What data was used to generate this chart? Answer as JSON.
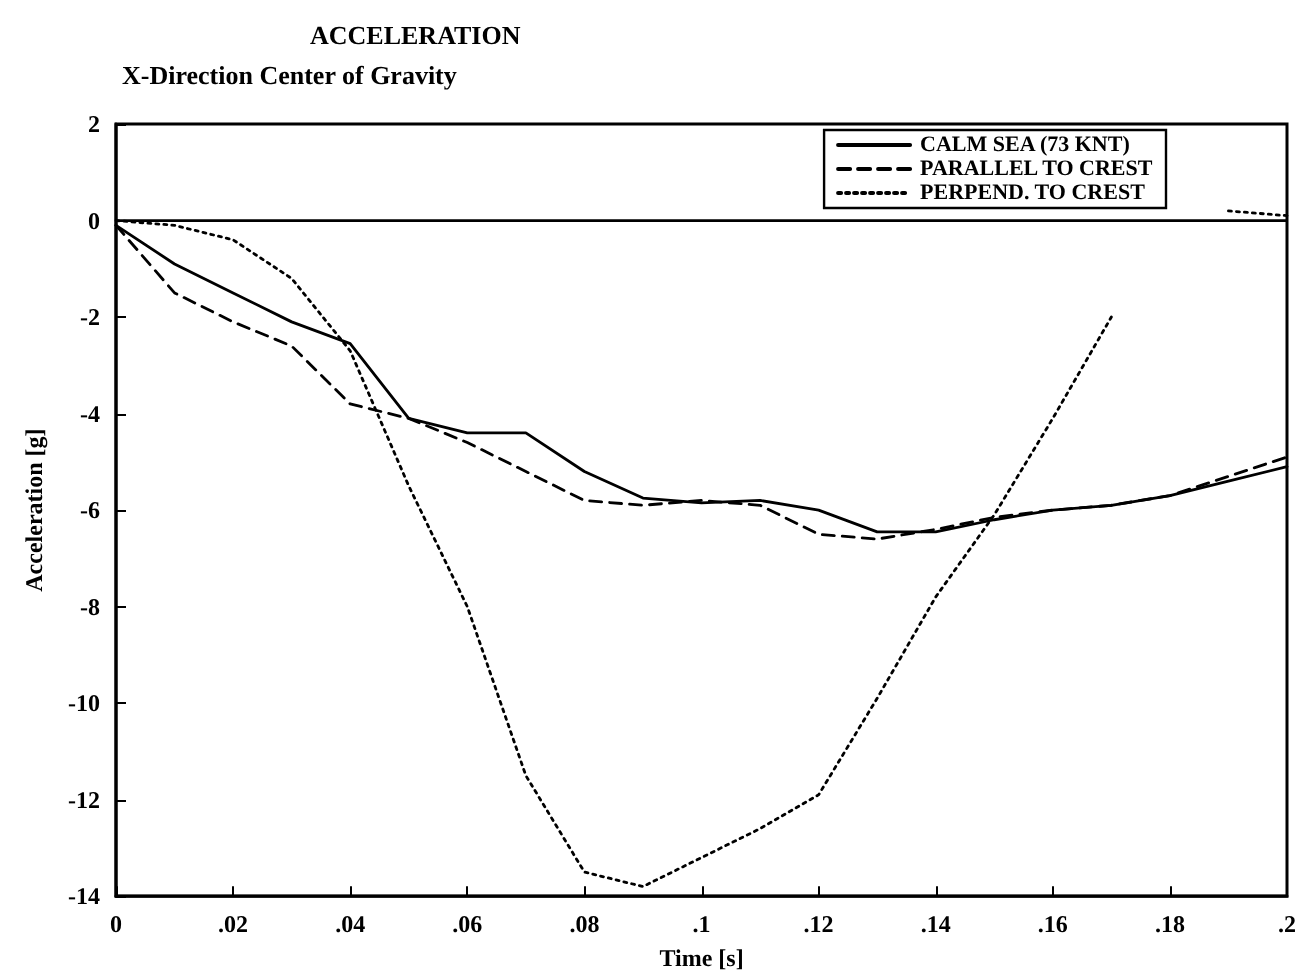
{
  "chart_data": {
    "type": "line",
    "title": "ACCELERATION",
    "subtitle": "X-Direction Center of Gravity",
    "xlabel": "Time [s]",
    "ylabel": "Acceleration [g]",
    "x": [
      0,
      0.01,
      0.02,
      0.03,
      0.04,
      0.05,
      0.06,
      0.07,
      0.08,
      0.09,
      0.1,
      0.11,
      0.12,
      0.13,
      0.14,
      0.15,
      0.16,
      0.17,
      0.18,
      0.19,
      0.2
    ],
    "series": [
      {
        "name": "CALM SEA (73 KNT)",
        "color": "#000000",
        "line_style": "solid",
        "values": [
          -0.1,
          -0.9,
          -1.5,
          -2.1,
          -2.55,
          -4.1,
          -4.4,
          -4.4,
          -5.2,
          -5.75,
          -5.85,
          -5.8,
          -6.0,
          -6.45,
          -6.45,
          -6.2,
          -6.0,
          -5.9,
          -5.7,
          -5.4,
          -5.1
        ]
      },
      {
        "name": "PARALLEL TO CREST",
        "color": "#000000",
        "line_style": "dashed",
        "values": [
          -0.1,
          -1.5,
          -2.1,
          -2.6,
          -3.8,
          -4.1,
          -4.6,
          -5.2,
          -5.8,
          -5.9,
          -5.8,
          -5.9,
          -6.5,
          -6.6,
          -6.4,
          -6.15,
          -6.0,
          -5.9,
          -5.7,
          -5.3,
          -4.9
        ]
      },
      {
        "name": "PERPEND. TO CREST",
        "color": "#000000",
        "line_style": "dotted",
        "values": [
          0,
          -0.1,
          -0.4,
          -1.2,
          -2.7,
          -5.5,
          -8.0,
          -11.5,
          -13.5,
          -13.8,
          -13.2,
          -12.6,
          -11.9,
          -9.9,
          -7.8,
          -6.1,
          -4.1,
          -2.0,
          null,
          0.2,
          0.1
        ]
      }
    ],
    "xlim": [
      0,
      0.2
    ],
    "xticks": [
      0,
      {
        "value": 0.02,
        "label": ".02"
      },
      {
        "value": 0.04,
        "label": ".04"
      },
      {
        "value": 0.06,
        "label": ".06"
      },
      {
        "value": 0.08,
        "label": ".08"
      },
      {
        "value": 0.1,
        "label": ".1"
      },
      {
        "value": 0.12,
        "label": ".12"
      },
      {
        "value": 0.14,
        "label": ".14"
      },
      {
        "value": 0.16,
        "label": ".16"
      },
      {
        "value": 0.18,
        "label": ".18"
      },
      {
        "value": 0.2,
        "label": ".2"
      }
    ],
    "ylim": [
      -14,
      2
    ],
    "yticks": [
      -14,
      -12,
      -10,
      -8,
      -6,
      -4,
      -2,
      0,
      2
    ],
    "ref_lines": [
      {
        "axis": "y",
        "value": 0,
        "color": "#000000",
        "line_style": "solid"
      }
    ],
    "grid": false,
    "legend": "top right",
    "marker": "none"
  }
}
